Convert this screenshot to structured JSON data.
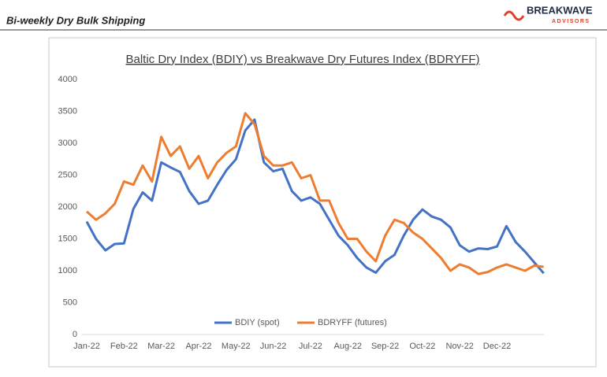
{
  "header": {
    "title": "Bi-weekly Dry Bulk Shipping",
    "logo": "BREAKWAVE",
    "logo_sub": "ADVISORS"
  },
  "chart_data": {
    "type": "line",
    "title": "Baltic Dry Index (BDIY) vs Breakwave Dry Futures Index (BDRYFF)",
    "categories": [
      "Jan-22",
      null,
      null,
      null,
      "Feb-22",
      null,
      null,
      null,
      "Mar-22",
      null,
      null,
      null,
      "Apr-22",
      null,
      null,
      null,
      "May-22",
      null,
      null,
      null,
      "Jun-22",
      null,
      null,
      null,
      "Jul-22",
      null,
      null,
      null,
      "Aug-22",
      null,
      null,
      null,
      "Sep-22",
      null,
      null,
      null,
      "Oct-22",
      null,
      null,
      null,
      "Nov-22",
      null,
      null,
      null,
      "Dec-22",
      null,
      null,
      null,
      null,
      null
    ],
    "series": [
      {
        "name": "BDIY (spot)",
        "color": "#4472c4",
        "values": [
          1770,
          1500,
          1320,
          1420,
          1430,
          1970,
          2230,
          2100,
          2700,
          2620,
          2550,
          2250,
          2050,
          2100,
          2350,
          2580,
          2750,
          3200,
          3370,
          2700,
          2560,
          2600,
          2250,
          2100,
          2150,
          2050,
          1800,
          1550,
          1400,
          1200,
          1050,
          970,
          1150,
          1250,
          1550,
          1800,
          1960,
          1850,
          1800,
          1680,
          1400,
          1300,
          1350,
          1340,
          1380,
          1700,
          1450,
          1300,
          1130,
          960
        ]
      },
      {
        "name": "BDRYFF (futures)",
        "color": "#ed7d31",
        "values": [
          1930,
          1800,
          1900,
          2050,
          2400,
          2350,
          2650,
          2400,
          3100,
          2800,
          2950,
          2600,
          2800,
          2450,
          2700,
          2850,
          2950,
          3470,
          3300,
          2800,
          2650,
          2650,
          2700,
          2450,
          2500,
          2100,
          2100,
          1750,
          1500,
          1500,
          1300,
          1150,
          1550,
          1800,
          1750,
          1600,
          1500,
          1350,
          1200,
          1000,
          1100,
          1050,
          950,
          980,
          1050,
          1100,
          1050,
          1000,
          1080,
          1060
        ]
      }
    ],
    "ylim": [
      0,
      4000
    ],
    "yticks": [
      0,
      500,
      1000,
      1500,
      2000,
      2500,
      3000,
      3500,
      4000
    ],
    "grid": false,
    "legend": "bottom"
  }
}
